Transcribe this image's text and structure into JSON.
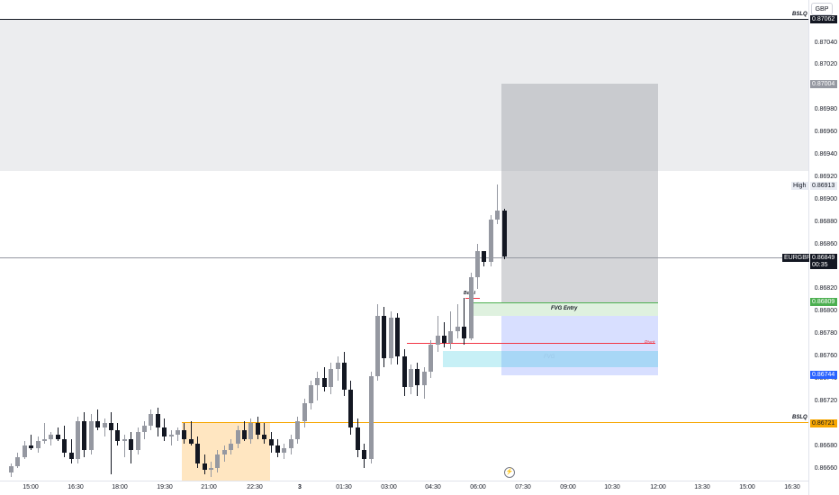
{
  "symbol": "EURGBP",
  "currency": "GBP",
  "countdown": "00:35",
  "high_label": "High",
  "colors": {
    "up": "#9598a1",
    "down": "#131722",
    "orange": "#f7a600",
    "green": "#4caf50",
    "blue_tag": "#2962ff",
    "red": "#f23645"
  },
  "price_axis": {
    "ticks": [
      "0.87040",
      "0.87020",
      "0.87000",
      "0.86980",
      "0.86960",
      "0.86940",
      "0.86920",
      "0.86900",
      "0.86880",
      "0.86860",
      "0.86840",
      "0.86820",
      "0.86800",
      "0.86780",
      "0.86760",
      "0.86740",
      "0.86720",
      "0.86700",
      "0.86680",
      "0.86660"
    ],
    "tags": {
      "bslq_top": "0.87062",
      "target": "0.87004",
      "high": "0.86913",
      "current": "0.86849",
      "entry": "0.86809",
      "stop": "0.86744",
      "bslq_bottom": "0.86721"
    }
  },
  "time_axis": [
    "15:00",
    "16:30",
    "18:00",
    "19:30",
    "21:00",
    "22:30",
    "3",
    "01:30",
    "03:00",
    "04:30",
    "06:00",
    "07:30",
    "09:00",
    "10:30",
    "12:00",
    "13:30",
    "15:00",
    "16:30"
  ],
  "annotations": {
    "bslq_top": "BSLQ",
    "bslq_bottom": "BSLQ",
    "fvg_entry": "FVG Entry",
    "fvg": "FVG",
    "bos": "BoS-I",
    "pivot": "Pivot"
  },
  "chart_data": {
    "type": "candlestick",
    "symbol": "EURGBP",
    "ylim": [
      0.86652,
      0.87078
    ],
    "candles": [
      {
        "o": 0.86656,
        "h": 0.86664,
        "l": 0.86652,
        "c": 0.86662
      },
      {
        "o": 0.86662,
        "h": 0.86674,
        "l": 0.8666,
        "c": 0.8667
      },
      {
        "o": 0.8667,
        "h": 0.86684,
        "l": 0.86668,
        "c": 0.8668
      },
      {
        "o": 0.8668,
        "h": 0.8669,
        "l": 0.86676,
        "c": 0.86678
      },
      {
        "o": 0.86678,
        "h": 0.86688,
        "l": 0.86674,
        "c": 0.86684
      },
      {
        "o": 0.86684,
        "h": 0.867,
        "l": 0.86682,
        "c": 0.86686
      },
      {
        "o": 0.86686,
        "h": 0.86692,
        "l": 0.8668,
        "c": 0.8669
      },
      {
        "o": 0.8669,
        "h": 0.86696,
        "l": 0.86684,
        "c": 0.86686
      },
      {
        "o": 0.86686,
        "h": 0.86698,
        "l": 0.8667,
        "c": 0.86674
      },
      {
        "o": 0.86674,
        "h": 0.86686,
        "l": 0.86664,
        "c": 0.86668
      },
      {
        "o": 0.86668,
        "h": 0.86706,
        "l": 0.86664,
        "c": 0.86702
      },
      {
        "o": 0.86702,
        "h": 0.8671,
        "l": 0.8667,
        "c": 0.86676
      },
      {
        "o": 0.86676,
        "h": 0.86708,
        "l": 0.86672,
        "c": 0.86702
      },
      {
        "o": 0.86702,
        "h": 0.86712,
        "l": 0.86694,
        "c": 0.86696
      },
      {
        "o": 0.86696,
        "h": 0.86704,
        "l": 0.86688,
        "c": 0.867
      },
      {
        "o": 0.867,
        "h": 0.8671,
        "l": 0.86654,
        "c": 0.86694
      },
      {
        "o": 0.86694,
        "h": 0.867,
        "l": 0.8668,
        "c": 0.86684
      },
      {
        "o": 0.86684,
        "h": 0.8669,
        "l": 0.8667,
        "c": 0.86686
      },
      {
        "o": 0.86686,
        "h": 0.86692,
        "l": 0.86664,
        "c": 0.86676
      },
      {
        "o": 0.86676,
        "h": 0.86696,
        "l": 0.86672,
        "c": 0.86692
      },
      {
        "o": 0.86692,
        "h": 0.86702,
        "l": 0.86686,
        "c": 0.86698
      },
      {
        "o": 0.86698,
        "h": 0.86712,
        "l": 0.86694,
        "c": 0.86708
      },
      {
        "o": 0.86708,
        "h": 0.86714,
        "l": 0.86688,
        "c": 0.86696
      },
      {
        "o": 0.86696,
        "h": 0.86704,
        "l": 0.86684,
        "c": 0.86688
      },
      {
        "o": 0.86688,
        "h": 0.86694,
        "l": 0.8668,
        "c": 0.8669
      },
      {
        "o": 0.8669,
        "h": 0.86696,
        "l": 0.86684,
        "c": 0.86694
      },
      {
        "o": 0.86694,
        "h": 0.867,
        "l": 0.86682,
        "c": 0.86686
      },
      {
        "o": 0.86686,
        "h": 0.86702,
        "l": 0.8668,
        "c": 0.86682
      },
      {
        "o": 0.86682,
        "h": 0.86688,
        "l": 0.8666,
        "c": 0.86664
      },
      {
        "o": 0.86664,
        "h": 0.86672,
        "l": 0.86654,
        "c": 0.86658
      },
      {
        "o": 0.86658,
        "h": 0.86666,
        "l": 0.86652,
        "c": 0.8666
      },
      {
        "o": 0.8666,
        "h": 0.86676,
        "l": 0.86656,
        "c": 0.86672
      },
      {
        "o": 0.86672,
        "h": 0.8668,
        "l": 0.86666,
        "c": 0.86676
      },
      {
        "o": 0.86676,
        "h": 0.86686,
        "l": 0.86672,
        "c": 0.86682
      },
      {
        "o": 0.86682,
        "h": 0.86698,
        "l": 0.86678,
        "c": 0.86694
      },
      {
        "o": 0.86694,
        "h": 0.86702,
        "l": 0.86684,
        "c": 0.86686
      },
      {
        "o": 0.86686,
        "h": 0.86704,
        "l": 0.86682,
        "c": 0.867
      },
      {
        "o": 0.867,
        "h": 0.86706,
        "l": 0.86686,
        "c": 0.8669
      },
      {
        "o": 0.8669,
        "h": 0.867,
        "l": 0.86682,
        "c": 0.86686
      },
      {
        "o": 0.86686,
        "h": 0.86692,
        "l": 0.86674,
        "c": 0.8668
      },
      {
        "o": 0.8668,
        "h": 0.86686,
        "l": 0.8667,
        "c": 0.86674
      },
      {
        "o": 0.86674,
        "h": 0.86682,
        "l": 0.86668,
        "c": 0.86678
      },
      {
        "o": 0.86678,
        "h": 0.8669,
        "l": 0.86672,
        "c": 0.86686
      },
      {
        "o": 0.86686,
        "h": 0.86706,
        "l": 0.86682,
        "c": 0.86702
      },
      {
        "o": 0.86702,
        "h": 0.86722,
        "l": 0.86696,
        "c": 0.86718
      },
      {
        "o": 0.86718,
        "h": 0.86738,
        "l": 0.86712,
        "c": 0.86734
      },
      {
        "o": 0.86734,
        "h": 0.86746,
        "l": 0.8672,
        "c": 0.8674
      },
      {
        "o": 0.8674,
        "h": 0.8675,
        "l": 0.86728,
        "c": 0.86732
      },
      {
        "o": 0.86732,
        "h": 0.86754,
        "l": 0.86726,
        "c": 0.86748
      },
      {
        "o": 0.86748,
        "h": 0.8676,
        "l": 0.86738,
        "c": 0.86754
      },
      {
        "o": 0.86754,
        "h": 0.86764,
        "l": 0.86724,
        "c": 0.8673
      },
      {
        "o": 0.8673,
        "h": 0.86738,
        "l": 0.8669,
        "c": 0.86696
      },
      {
        "o": 0.86696,
        "h": 0.86704,
        "l": 0.8667,
        "c": 0.86676
      },
      {
        "o": 0.86676,
        "h": 0.86682,
        "l": 0.8666,
        "c": 0.86668
      },
      {
        "o": 0.86668,
        "h": 0.86746,
        "l": 0.86664,
        "c": 0.86742
      },
      {
        "o": 0.86742,
        "h": 0.86806,
        "l": 0.86738,
        "c": 0.86796
      },
      {
        "o": 0.86796,
        "h": 0.86804,
        "l": 0.8675,
        "c": 0.86758
      },
      {
        "o": 0.86758,
        "h": 0.868,
        "l": 0.86752,
        "c": 0.86794
      },
      {
        "o": 0.86794,
        "h": 0.86798,
        "l": 0.86752,
        "c": 0.8676
      },
      {
        "o": 0.8676,
        "h": 0.86766,
        "l": 0.86724,
        "c": 0.86732
      },
      {
        "o": 0.86732,
        "h": 0.86752,
        "l": 0.86726,
        "c": 0.86748
      },
      {
        "o": 0.86748,
        "h": 0.86754,
        "l": 0.86724,
        "c": 0.86734
      },
      {
        "o": 0.86734,
        "h": 0.8675,
        "l": 0.86722,
        "c": 0.86746
      },
      {
        "o": 0.86746,
        "h": 0.86774,
        "l": 0.8674,
        "c": 0.8677
      },
      {
        "o": 0.8677,
        "h": 0.86796,
        "l": 0.86764,
        "c": 0.86778
      },
      {
        "o": 0.86778,
        "h": 0.8679,
        "l": 0.86768,
        "c": 0.86772
      },
      {
        "o": 0.86772,
        "h": 0.868,
        "l": 0.86766,
        "c": 0.86782
      },
      {
        "o": 0.86782,
        "h": 0.86806,
        "l": 0.86776,
        "c": 0.86786
      },
      {
        "o": 0.86786,
        "h": 0.86812,
        "l": 0.8677,
        "c": 0.86776
      },
      {
        "o": 0.86776,
        "h": 0.86834,
        "l": 0.86774,
        "c": 0.8683
      },
      {
        "o": 0.8683,
        "h": 0.8686,
        "l": 0.8682,
        "c": 0.86854
      },
      {
        "o": 0.86854,
        "h": 0.86852,
        "l": 0.8684,
        "c": 0.86844
      },
      {
        "o": 0.86844,
        "h": 0.86886,
        "l": 0.8684,
        "c": 0.86882
      },
      {
        "o": 0.86882,
        "h": 0.86913,
        "l": 0.86878,
        "c": 0.8689
      },
      {
        "o": 0.8689,
        "h": 0.86891,
        "l": 0.86846,
        "c": 0.86849
      }
    ]
  }
}
